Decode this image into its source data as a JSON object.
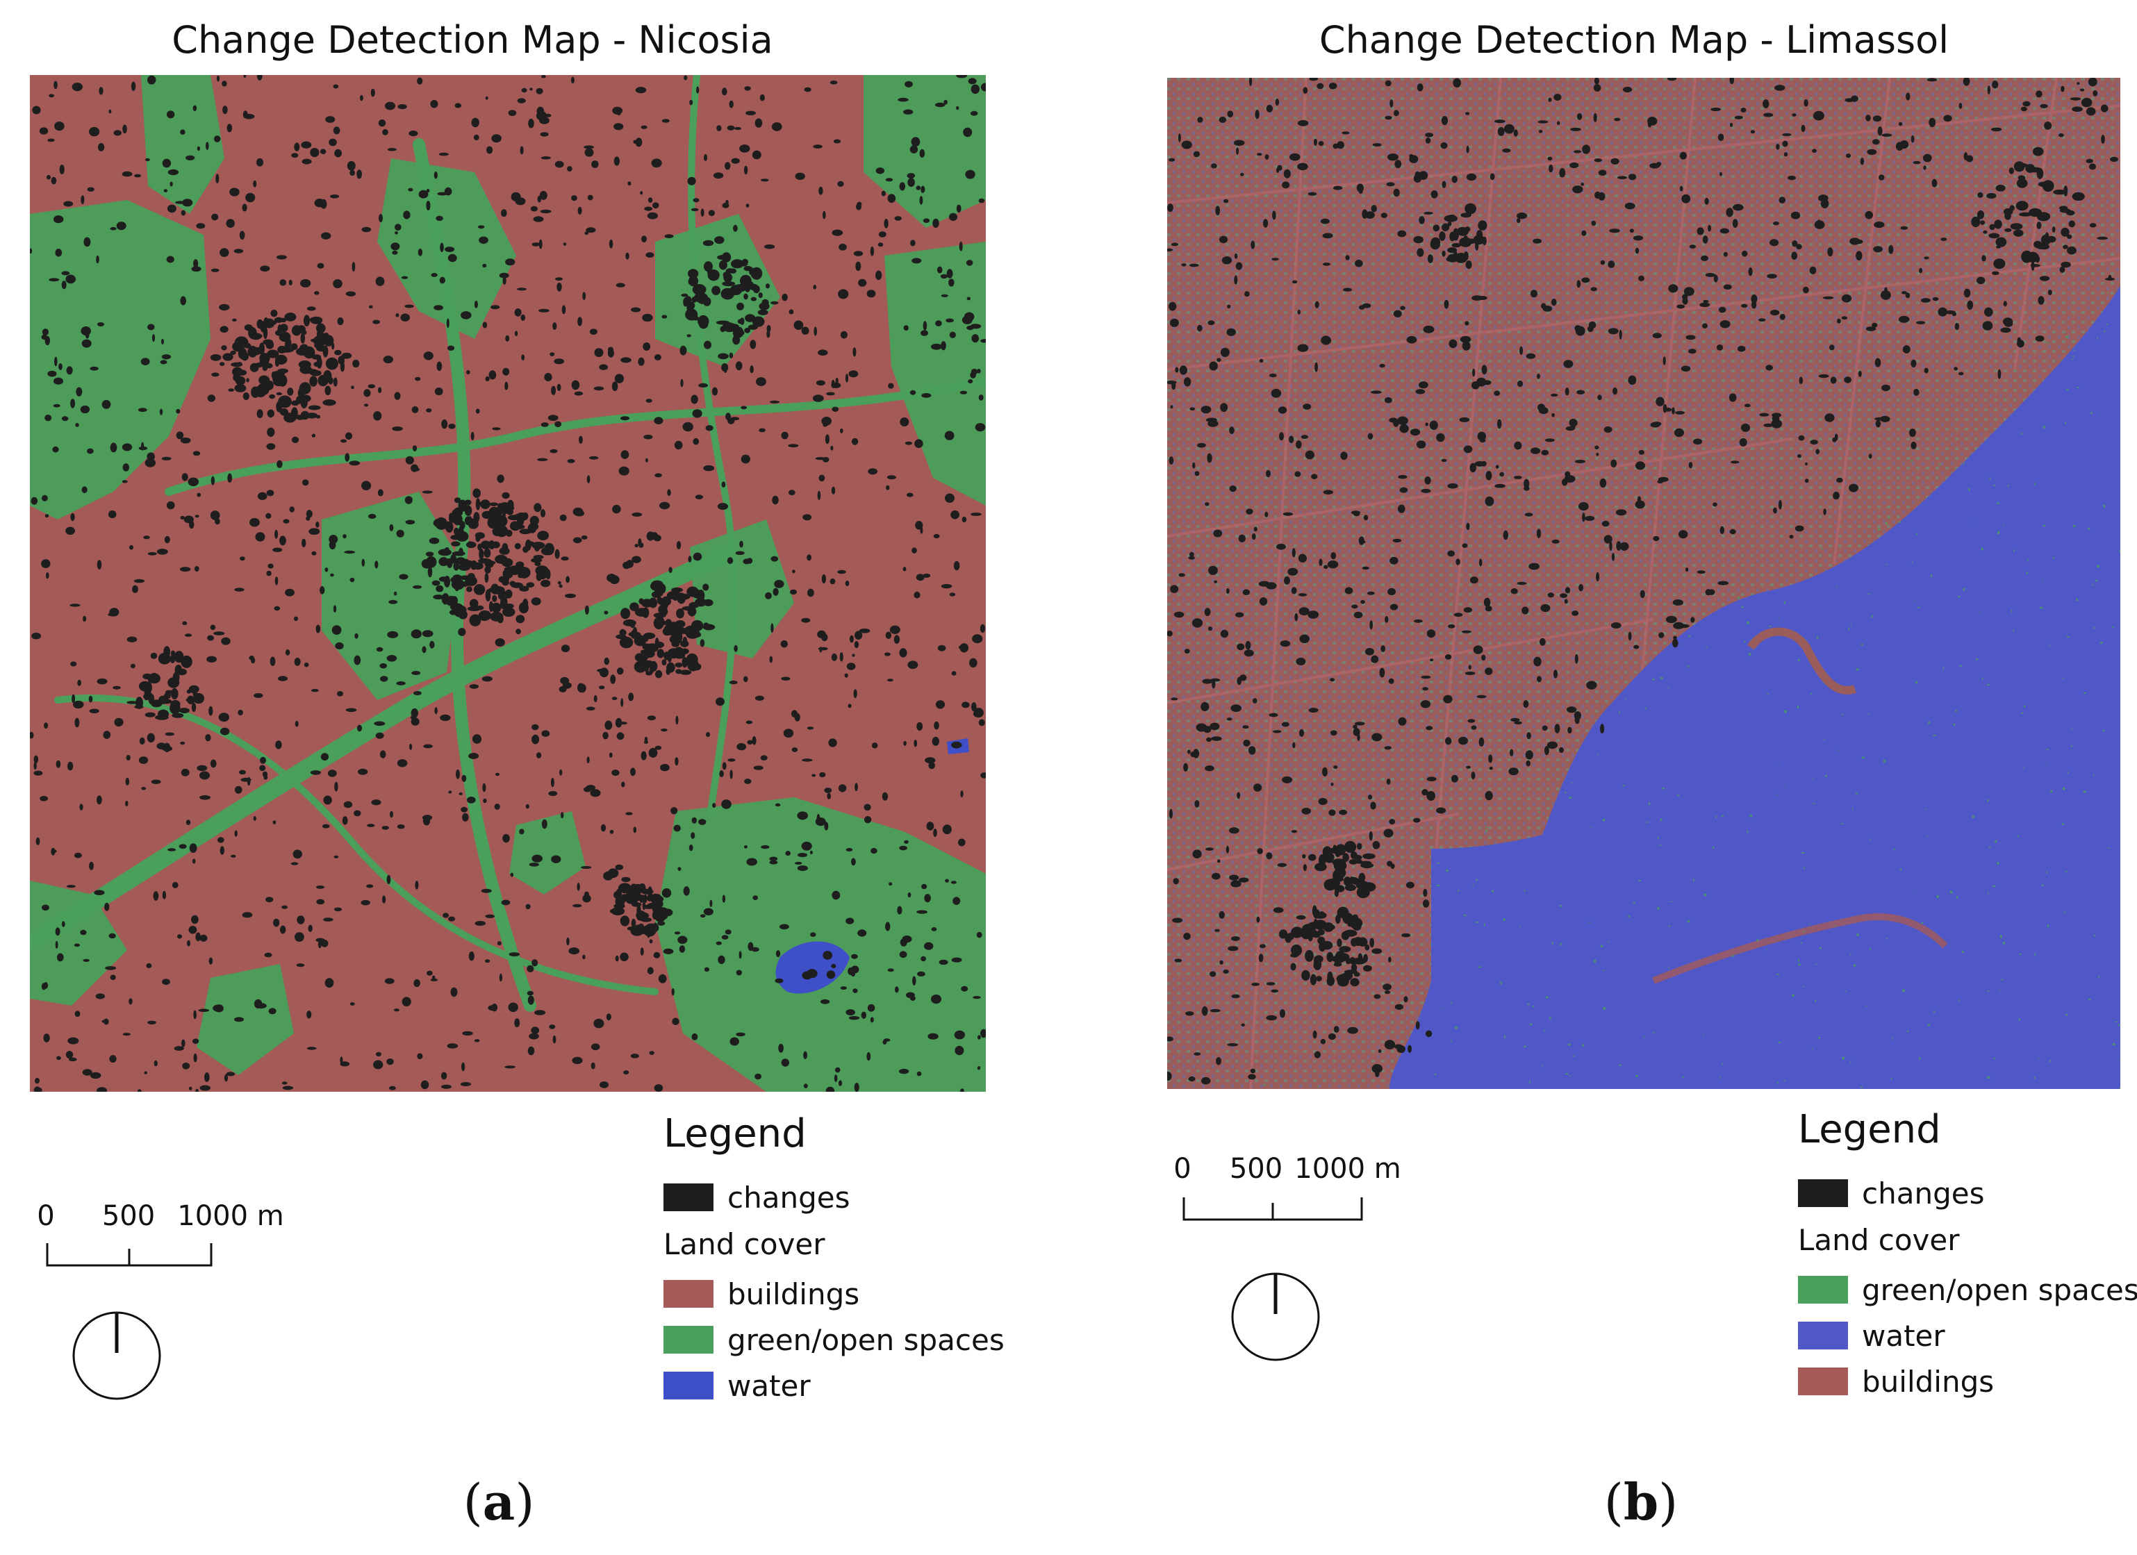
{
  "panels": [
    {
      "id": "a",
      "title": "Change Detection Map - Nicosia",
      "label_open": "(",
      "label_letter": "a",
      "label_close": ")",
      "legend": {
        "title": "Legend",
        "changes_label": "changes",
        "land_cover_title": "Land cover",
        "classes": [
          {
            "label": "buildings",
            "color": "#a45a57"
          },
          {
            "label": "green/open spaces",
            "color": "#4aa05b"
          },
          {
            "label": "water",
            "color": "#3f4fc7"
          }
        ]
      },
      "scale": {
        "ticks": [
          "0",
          "500",
          "1000 m"
        ]
      },
      "colors": {
        "changes": "#1e1e1e"
      }
    },
    {
      "id": "b",
      "title": "Change Detection Map - Limassol",
      "label_open": "(",
      "label_letter": "b",
      "label_close": ")",
      "legend": {
        "title": "Legend",
        "changes_label": "changes",
        "land_cover_title": "Land cover",
        "classes": [
          {
            "label": "green/open spaces",
            "color": "#4aa05b"
          },
          {
            "label": "water",
            "color": "#5058c8"
          },
          {
            "label": "buildings",
            "color": "#a45a57"
          }
        ]
      },
      "scale": {
        "ticks": [
          "0",
          "500",
          "1000 m"
        ]
      },
      "colors": {
        "changes": "#1e1e1e"
      }
    }
  ]
}
